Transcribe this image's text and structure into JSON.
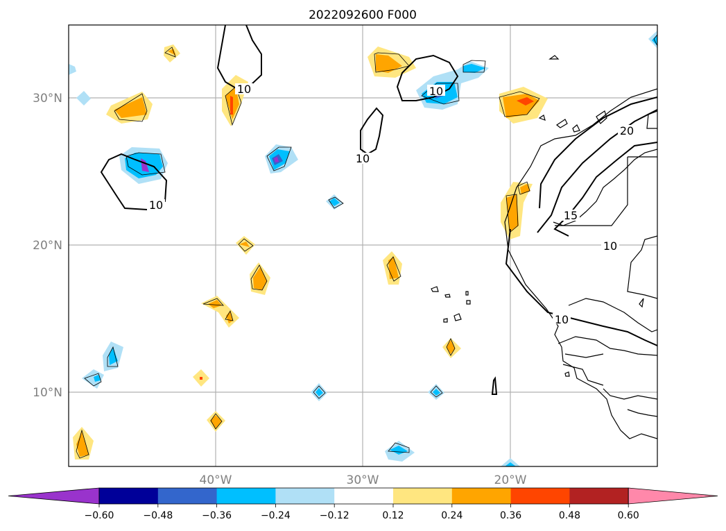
{
  "title": "2022092600 F000",
  "x_ticks": [
    "40°W",
    "30°W",
    "20°W"
  ],
  "y_ticks": [
    "30°N",
    "20°N",
    "10°N"
  ],
  "contour_labels": [
    "10",
    "10",
    "10",
    "10",
    "10",
    "20",
    "15",
    "10"
  ],
  "colorbar": {
    "ticks": [
      "−0.60",
      "−0.48",
      "−0.36",
      "−0.24",
      "−0.12",
      "0.12",
      "0.24",
      "0.36",
      "0.48",
      "0.60"
    ],
    "colors": [
      "#9933cc",
      "#000099",
      "#3366cc",
      "#00bfff",
      "#b0e0f6",
      "#ffffff",
      "#ffe680",
      "#ffa500",
      "#ff4500",
      "#b22222",
      "#ff88aa"
    ]
  },
  "map": {
    "lon_range": [
      -50,
      -10
    ],
    "lat_range": [
      5,
      35
    ],
    "gridlines": true
  }
}
